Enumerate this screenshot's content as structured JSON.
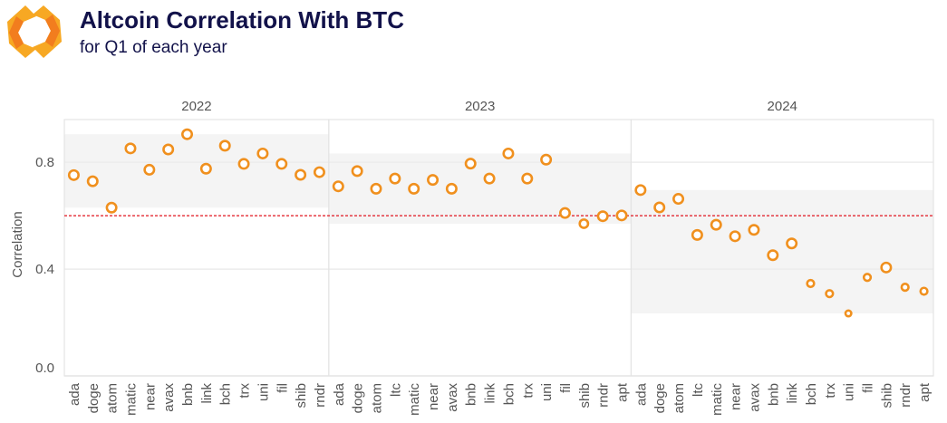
{
  "header": {
    "title": "Altcoin Correlation With BTC",
    "subtitle": "for Q1 of each year",
    "logo_colors": [
      "#f7a823",
      "#f27d1e"
    ]
  },
  "chart_data": {
    "type": "scatter",
    "title": "Altcoin Correlation With BTC",
    "subtitle": "for Q1 of each year",
    "ylabel": "Correlation",
    "xlabel": "",
    "ylim": [
      0,
      0.96
    ],
    "yticks": [
      "0.0",
      "0.4",
      "0.8"
    ],
    "ytick_values": [
      0,
      0.4,
      0.8
    ],
    "grid": true,
    "reference_line": {
      "value": 0.6,
      "color": "#e0141e",
      "style": "dashed"
    },
    "marker_color": "#f0901e",
    "band_color": "#f4f4f4",
    "panels": [
      {
        "label": "2022",
        "points": [
          {
            "coin": "ada",
            "value": 0.752,
            "size": "large"
          },
          {
            "coin": "doge",
            "value": 0.729,
            "size": "large"
          },
          {
            "coin": "atom",
            "value": 0.63,
            "size": "large"
          },
          {
            "coin": "matic",
            "value": 0.852,
            "size": "large"
          },
          {
            "coin": "near",
            "value": 0.772,
            "size": "large"
          },
          {
            "coin": "avax",
            "value": 0.848,
            "size": "large"
          },
          {
            "coin": "bnb",
            "value": 0.905,
            "size": "large"
          },
          {
            "coin": "link",
            "value": 0.776,
            "size": "large"
          },
          {
            "coin": "bch",
            "value": 0.862,
            "size": "large"
          },
          {
            "coin": "trx",
            "value": 0.794,
            "size": "large"
          },
          {
            "coin": "uni",
            "value": 0.833,
            "size": "large"
          },
          {
            "coin": "fil",
            "value": 0.794,
            "size": "large"
          },
          {
            "coin": "shib",
            "value": 0.753,
            "size": "large"
          },
          {
            "coin": "rndr",
            "value": 0.763,
            "size": "large"
          }
        ]
      },
      {
        "label": "2023",
        "points": [
          {
            "coin": "ada",
            "value": 0.71,
            "size": "large"
          },
          {
            "coin": "doge",
            "value": 0.767,
            "size": "large"
          },
          {
            "coin": "atom",
            "value": 0.701,
            "size": "large"
          },
          {
            "coin": "ltc",
            "value": 0.739,
            "size": "large"
          },
          {
            "coin": "matic",
            "value": 0.701,
            "size": "large"
          },
          {
            "coin": "near",
            "value": 0.734,
            "size": "large"
          },
          {
            "coin": "avax",
            "value": 0.701,
            "size": "large"
          },
          {
            "coin": "bnb",
            "value": 0.795,
            "size": "large"
          },
          {
            "coin": "link",
            "value": 0.739,
            "size": "large"
          },
          {
            "coin": "bch",
            "value": 0.833,
            "size": "large"
          },
          {
            "coin": "trx",
            "value": 0.739,
            "size": "large"
          },
          {
            "coin": "uni",
            "value": 0.81,
            "size": "large"
          },
          {
            "coin": "fil",
            "value": 0.61,
            "size": "large"
          },
          {
            "coin": "shib",
            "value": 0.57,
            "size": "medium"
          },
          {
            "coin": "rndr",
            "value": 0.598,
            "size": "large"
          },
          {
            "coin": "apt",
            "value": 0.601,
            "size": "large"
          }
        ]
      },
      {
        "label": "2024",
        "points": [
          {
            "coin": "ada",
            "value": 0.696,
            "size": "large"
          },
          {
            "coin": "doge",
            "value": 0.631,
            "size": "large"
          },
          {
            "coin": "atom",
            "value": 0.663,
            "size": "large"
          },
          {
            "coin": "ltc",
            "value": 0.528,
            "size": "large"
          },
          {
            "coin": "matic",
            "value": 0.566,
            "size": "large"
          },
          {
            "coin": "near",
            "value": 0.523,
            "size": "large"
          },
          {
            "coin": "avax",
            "value": 0.547,
            "size": "large"
          },
          {
            "coin": "bnb",
            "value": 0.452,
            "size": "large"
          },
          {
            "coin": "link",
            "value": 0.496,
            "size": "large"
          },
          {
            "coin": "bch",
            "value": 0.346,
            "size": "small"
          },
          {
            "coin": "trx",
            "value": 0.308,
            "size": "small"
          },
          {
            "coin": "uni",
            "value": 0.234,
            "size": "tiny"
          },
          {
            "coin": "fil",
            "value": 0.369,
            "size": "small"
          },
          {
            "coin": "shib",
            "value": 0.406,
            "size": "large"
          },
          {
            "coin": "rndr",
            "value": 0.332,
            "size": "small"
          },
          {
            "coin": "apt",
            "value": 0.317,
            "size": "small"
          }
        ]
      }
    ]
  }
}
